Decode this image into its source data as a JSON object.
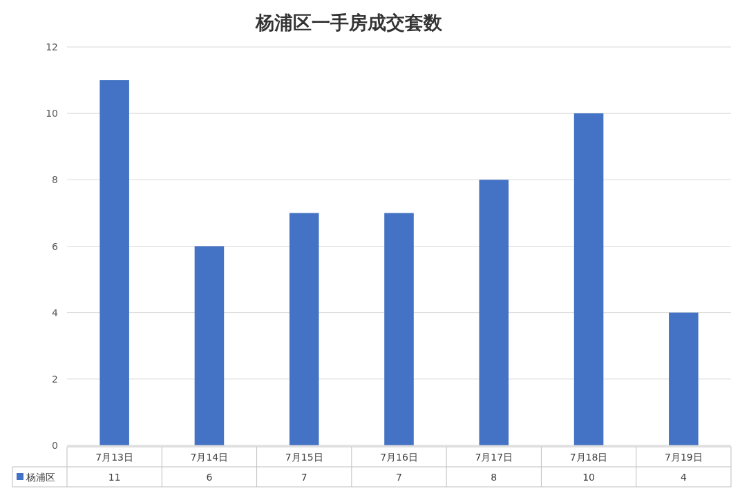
{
  "chart_data": {
    "type": "bar",
    "title": "杨浦区一手房成交套数",
    "categories": [
      "7月13日",
      "7月14日",
      "7月15日",
      "7月16日",
      "7月17日",
      "7月18日",
      "7月19日"
    ],
    "series": [
      {
        "name": "杨浦区",
        "color": "#4472c4",
        "values": [
          11,
          6,
          7,
          7,
          8,
          10,
          4
        ]
      }
    ],
    "ylim": [
      0,
      12
    ],
    "yticks": [
      0,
      2,
      4,
      6,
      8,
      10,
      12
    ],
    "grid": "y",
    "data_labels": true,
    "legend": "bottom"
  }
}
